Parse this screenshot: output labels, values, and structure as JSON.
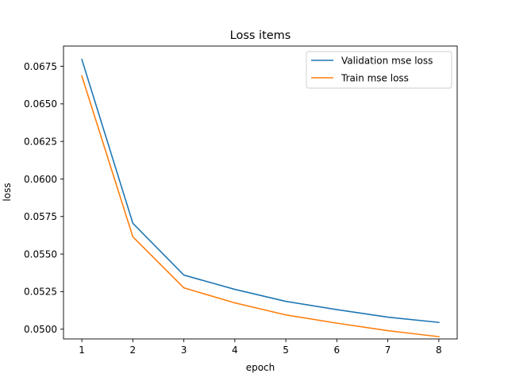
{
  "chart_data": {
    "type": "line",
    "title": "Loss items",
    "xlabel": "epoch",
    "ylabel": "loss",
    "x": [
      1,
      2,
      3,
      4,
      5,
      6,
      7,
      8
    ],
    "xlim": [
      0.64,
      8.36
    ],
    "ylim": [
      0.04935,
      0.06885
    ],
    "xticks": [
      1,
      2,
      3,
      4,
      5,
      6,
      7,
      8
    ],
    "xtick_labels": [
      "1",
      "2",
      "3",
      "4",
      "5",
      "6",
      "7",
      "8"
    ],
    "yticks": [
      0.05,
      0.0525,
      0.055,
      0.0575,
      0.06,
      0.0625,
      0.065,
      0.0675
    ],
    "ytick_labels": [
      "0.0500",
      "0.0525",
      "0.0550",
      "0.0575",
      "0.0600",
      "0.0625",
      "0.0650",
      "0.0675"
    ],
    "grid": false,
    "legend_position": "top-right",
    "series": [
      {
        "name": "Validation mse loss",
        "color": "#1f77b4",
        "values": [
          0.06795,
          0.05705,
          0.0536,
          0.05265,
          0.05185,
          0.0513,
          0.0508,
          0.05045
        ]
      },
      {
        "name": "Train mse loss",
        "color": "#ff7f0e",
        "values": [
          0.06685,
          0.05615,
          0.05275,
          0.05175,
          0.05095,
          0.0504,
          0.0499,
          0.0495
        ]
      }
    ]
  }
}
